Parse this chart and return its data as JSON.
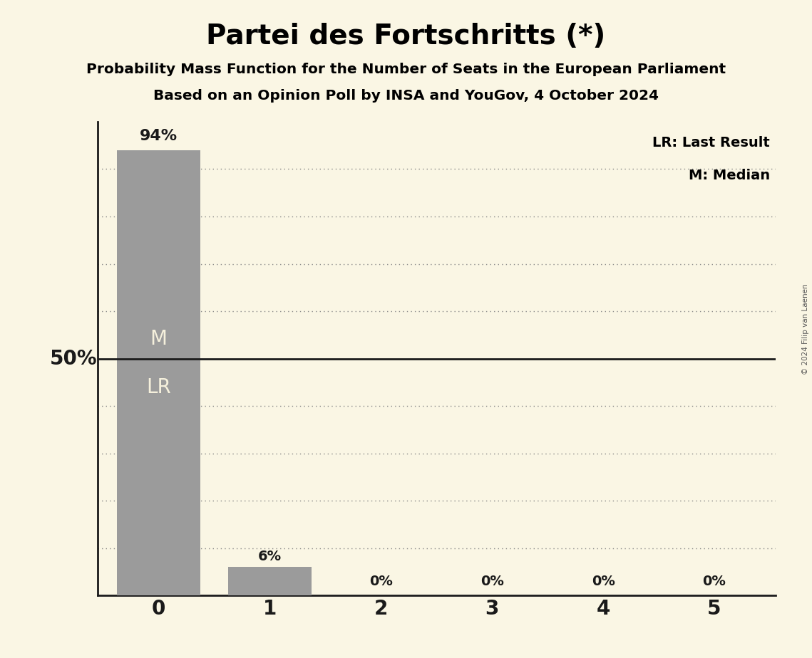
{
  "title": "Partei des Fortschritts (*)",
  "subtitle1": "Probability Mass Function for the Number of Seats in the European Parliament",
  "subtitle2": "Based on an Opinion Poll by INSA and YouGov, 4 October 2024",
  "copyright": "© 2024 Filip van Laenen",
  "categories": [
    0,
    1,
    2,
    3,
    4,
    5
  ],
  "values": [
    94,
    6,
    0,
    0,
    0,
    0
  ],
  "bar_color": "#9b9b9b",
  "background_color": "#faf6e4",
  "ylabel_text": "50%",
  "ylabel_value": 50,
  "solid_line_value": 50,
  "dotted_line_values": [
    10,
    20,
    30,
    40,
    60,
    70,
    80,
    90
  ],
  "median_seat": 0,
  "last_result_seat": 0,
  "bar_label_color": "#f5f0dc",
  "annotation_color": "#1a1a1a",
  "ylim": [
    0,
    100
  ],
  "bar_width": 0.75,
  "legend_text_lr": "LR: Last Result",
  "legend_text_m": "M: Median",
  "dotted_line_color": "#888888",
  "spine_color": "#1a1a1a"
}
